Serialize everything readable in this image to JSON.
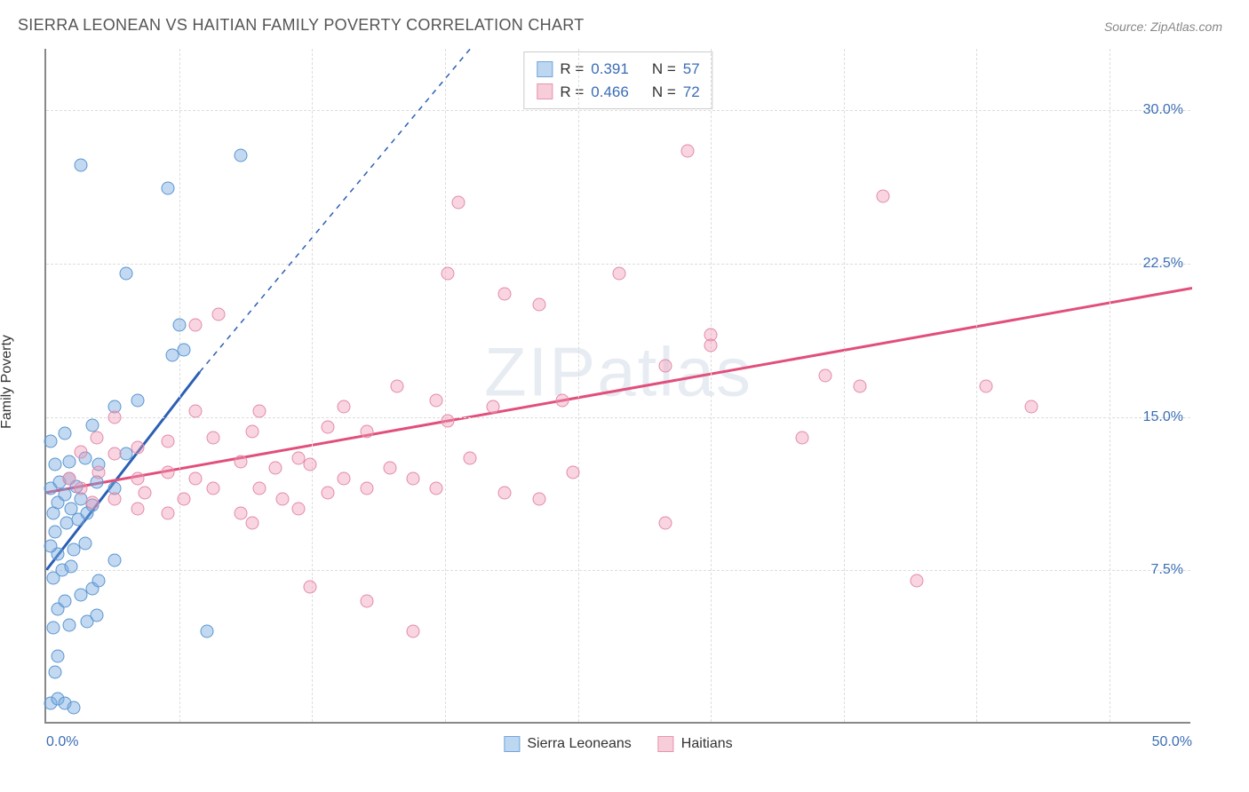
{
  "title": "SIERRA LEONEAN VS HAITIAN FAMILY POVERTY CORRELATION CHART",
  "source": "Source: ZipAtlas.com",
  "watermark": "ZIPatlas",
  "ylabel": "Family Poverty",
  "chart": {
    "type": "scatter",
    "xlim": [
      0,
      50
    ],
    "ylim": [
      0,
      33
    ],
    "x_ticks": [
      0,
      50
    ],
    "x_tick_labels": [
      "0.0%",
      "50.0%"
    ],
    "y_ticks": [
      7.5,
      15.0,
      22.5,
      30.0
    ],
    "y_tick_labels": [
      "7.5%",
      "15.0%",
      "22.5%",
      "30.0%"
    ],
    "x_grid_minor": [
      5.8,
      11.6,
      17.4,
      23.2,
      29.0,
      34.8,
      40.6,
      46.4
    ],
    "background_color": "#ffffff",
    "grid_color": "#dddddd",
    "axis_color": "#888888",
    "label_fontsize": 16,
    "title_fontsize": 18,
    "marker_size": 15,
    "marker_border_width": 1.5
  },
  "series": [
    {
      "id": "sierra_leoneans",
      "label": "Sierra Leoneans",
      "fill_color": "rgba(120,170,225,0.45)",
      "border_color": "#5a95d0",
      "swatch_fill": "#bdd7f0",
      "swatch_border": "#6fa6db",
      "R_label": "R =",
      "R_value": "0.391",
      "N_label": "N =",
      "N_value": "57",
      "trend": {
        "x1": 0,
        "y1": 7.5,
        "x2": 6.7,
        "y2": 17.2,
        "dash_to_x": 18.5,
        "dash_to_y": 33,
        "color": "#2b5fb5",
        "width": 3
      },
      "points": [
        [
          0.2,
          1.0
        ],
        [
          0.5,
          1.2
        ],
        [
          0.8,
          1.0
        ],
        [
          1.2,
          0.8
        ],
        [
          0.4,
          2.5
        ],
        [
          0.5,
          3.3
        ],
        [
          0.3,
          4.7
        ],
        [
          1.0,
          4.8
        ],
        [
          1.8,
          5.0
        ],
        [
          2.2,
          5.3
        ],
        [
          0.5,
          5.6
        ],
        [
          0.8,
          6.0
        ],
        [
          1.5,
          6.3
        ],
        [
          2.0,
          6.6
        ],
        [
          0.3,
          7.1
        ],
        [
          0.7,
          7.5
        ],
        [
          1.1,
          7.7
        ],
        [
          0.5,
          8.3
        ],
        [
          0.2,
          8.7
        ],
        [
          1.2,
          8.5
        ],
        [
          1.7,
          8.8
        ],
        [
          0.4,
          9.4
        ],
        [
          0.9,
          9.8
        ],
        [
          1.4,
          10.0
        ],
        [
          0.3,
          10.3
        ],
        [
          1.1,
          10.5
        ],
        [
          1.8,
          10.3
        ],
        [
          0.5,
          10.8
        ],
        [
          0.8,
          11.2
        ],
        [
          1.5,
          11.0
        ],
        [
          2.0,
          10.7
        ],
        [
          0.2,
          11.5
        ],
        [
          0.6,
          11.8
        ],
        [
          1.0,
          12.0
        ],
        [
          1.3,
          11.6
        ],
        [
          2.2,
          11.8
        ],
        [
          3.0,
          11.5
        ],
        [
          0.4,
          12.7
        ],
        [
          1.0,
          12.8
        ],
        [
          1.7,
          13.0
        ],
        [
          2.3,
          12.7
        ],
        [
          3.5,
          13.2
        ],
        [
          0.2,
          13.8
        ],
        [
          0.8,
          14.2
        ],
        [
          2.0,
          14.6
        ],
        [
          3.0,
          15.5
        ],
        [
          4.0,
          15.8
        ],
        [
          5.5,
          18.0
        ],
        [
          6.0,
          18.3
        ],
        [
          5.8,
          19.5
        ],
        [
          7.0,
          4.5
        ],
        [
          3.5,
          22.0
        ],
        [
          5.3,
          26.2
        ],
        [
          1.5,
          27.3
        ],
        [
          8.5,
          27.8
        ],
        [
          3.0,
          8.0
        ],
        [
          2.3,
          7.0
        ]
      ]
    },
    {
      "id": "haitians",
      "label": "Haitians",
      "fill_color": "rgba(240,150,180,0.40)",
      "border_color": "#e38aa8",
      "swatch_fill": "#f6cdd9",
      "swatch_border": "#e695b0",
      "R_label": "R =",
      "R_value": "0.466",
      "N_label": "N =",
      "N_value": "72",
      "trend": {
        "x1": 0,
        "y1": 11.3,
        "x2": 50,
        "y2": 21.3,
        "color": "#e14f7b",
        "width": 3
      },
      "points": [
        [
          1.0,
          12.0
        ],
        [
          1.5,
          11.5
        ],
        [
          1.5,
          13.3
        ],
        [
          2.0,
          10.8
        ],
        [
          2.3,
          12.3
        ],
        [
          2.2,
          14.0
        ],
        [
          3.0,
          11.0
        ],
        [
          3.0,
          13.2
        ],
        [
          3.0,
          15.0
        ],
        [
          4.0,
          10.5
        ],
        [
          4.0,
          12.0
        ],
        [
          4.0,
          13.5
        ],
        [
          4.3,
          11.3
        ],
        [
          5.3,
          10.3
        ],
        [
          5.3,
          13.8
        ],
        [
          5.3,
          12.3
        ],
        [
          6.0,
          11.0
        ],
        [
          6.5,
          12.0
        ],
        [
          6.5,
          15.3
        ],
        [
          6.5,
          19.5
        ],
        [
          7.3,
          11.5
        ],
        [
          7.3,
          14.0
        ],
        [
          7.5,
          20.0
        ],
        [
          8.5,
          10.3
        ],
        [
          8.5,
          12.8
        ],
        [
          9.0,
          14.3
        ],
        [
          9.0,
          9.8
        ],
        [
          9.3,
          11.5
        ],
        [
          9.3,
          15.3
        ],
        [
          10.0,
          12.5
        ],
        [
          10.3,
          11.0
        ],
        [
          11.0,
          13.0
        ],
        [
          11.0,
          10.5
        ],
        [
          11.5,
          12.7
        ],
        [
          11.5,
          6.7
        ],
        [
          12.3,
          14.5
        ],
        [
          12.3,
          11.3
        ],
        [
          13.0,
          12.0
        ],
        [
          13.0,
          15.5
        ],
        [
          14.0,
          6.0
        ],
        [
          14.0,
          11.5
        ],
        [
          14.0,
          14.3
        ],
        [
          15.0,
          12.5
        ],
        [
          15.3,
          16.5
        ],
        [
          16.0,
          12.0
        ],
        [
          16.0,
          4.5
        ],
        [
          17.0,
          15.8
        ],
        [
          17.0,
          11.5
        ],
        [
          17.5,
          22.0
        ],
        [
          17.5,
          14.8
        ],
        [
          18.0,
          25.5
        ],
        [
          18.5,
          13.0
        ],
        [
          19.5,
          15.5
        ],
        [
          20.0,
          11.3
        ],
        [
          20.0,
          21.0
        ],
        [
          21.5,
          11.0
        ],
        [
          21.5,
          20.5
        ],
        [
          22.5,
          15.8
        ],
        [
          23.0,
          12.3
        ],
        [
          25.0,
          22.0
        ],
        [
          27.0,
          9.8
        ],
        [
          27.0,
          17.5
        ],
        [
          28.0,
          28.0
        ],
        [
          29.0,
          18.5
        ],
        [
          29.0,
          19.0
        ],
        [
          33.0,
          14.0
        ],
        [
          34.0,
          17.0
        ],
        [
          35.5,
          16.5
        ],
        [
          36.5,
          25.8
        ],
        [
          41.0,
          16.5
        ],
        [
          43.0,
          15.5
        ],
        [
          38.0,
          7.0
        ]
      ]
    }
  ],
  "legend_bottom": [
    {
      "label": "Sierra Leoneans",
      "fill": "#bdd7f0",
      "border": "#6fa6db"
    },
    {
      "label": "Haitians",
      "fill": "#f6cdd9",
      "border": "#e695b0"
    }
  ]
}
